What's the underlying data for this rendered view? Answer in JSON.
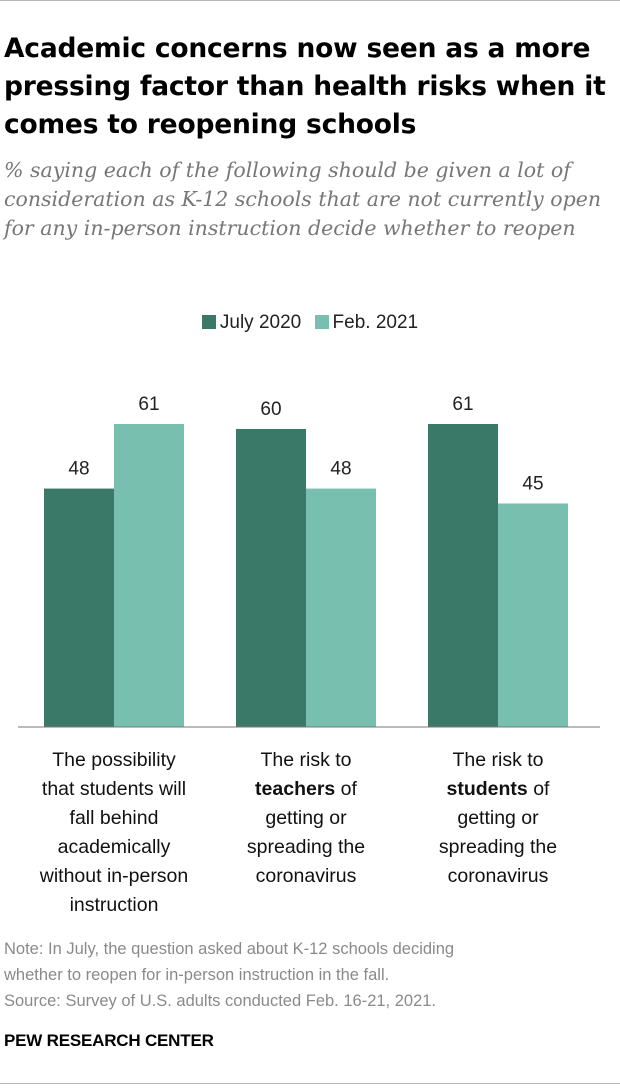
{
  "header": {
    "title": "Academic concerns now seen as a more pressing factor than health risks when it comes to reopening schools",
    "subtitle": "% saying each of the following should be given a lot of consideration as K-12 schools that are not currently open for any in-person instruction decide whether to reopen"
  },
  "legend": {
    "items": [
      {
        "label": "July 2020",
        "color": "#3a7868"
      },
      {
        "label": "Feb. 2021",
        "color": "#78bfb0"
      }
    ]
  },
  "chart_data": {
    "type": "bar",
    "categories": [
      "The possibility that students will fall behind academically without in-person instruction",
      "The risk to teachers of getting or spreading the coronavirus",
      "The risk to students of getting or spreading the coronavirus"
    ],
    "category_lines": [
      [
        {
          "text": "The possibility"
        },
        {
          "text": "that students will"
        },
        {
          "text": "fall behind"
        },
        {
          "text": "academically"
        },
        {
          "text": "without in-person"
        },
        {
          "text": "instruction"
        }
      ],
      [
        {
          "text": "The risk to"
        },
        {
          "bold": "teachers",
          "rest": " of"
        },
        {
          "text": "getting or"
        },
        {
          "text": "spreading the"
        },
        {
          "text": "coronavirus"
        }
      ],
      [
        {
          "text": "The risk to"
        },
        {
          "bold": "students",
          "rest": " of"
        },
        {
          "text": "getting or"
        },
        {
          "text": "spreading the"
        },
        {
          "text": "coronavirus"
        }
      ]
    ],
    "series": [
      {
        "name": "July 2020",
        "values": [
          48,
          60,
          61
        ],
        "color": "#3a7868"
      },
      {
        "name": "Feb. 2021",
        "values": [
          61,
          48,
          45
        ],
        "color": "#78bfb0"
      }
    ],
    "ylim": [
      0,
      61
    ],
    "grid": false,
    "legend_position": "top-center",
    "xlabel": "",
    "ylabel": ""
  },
  "footer": {
    "note_line1": "Note: In July, the question asked about K-12 schools deciding",
    "note_line2": "whether to reopen for in-person instruction in the fall.",
    "source": "Source: Survey of U.S. adults conducted Feb. 16-21, 2021.",
    "brand": "PEW RESEARCH CENTER"
  }
}
